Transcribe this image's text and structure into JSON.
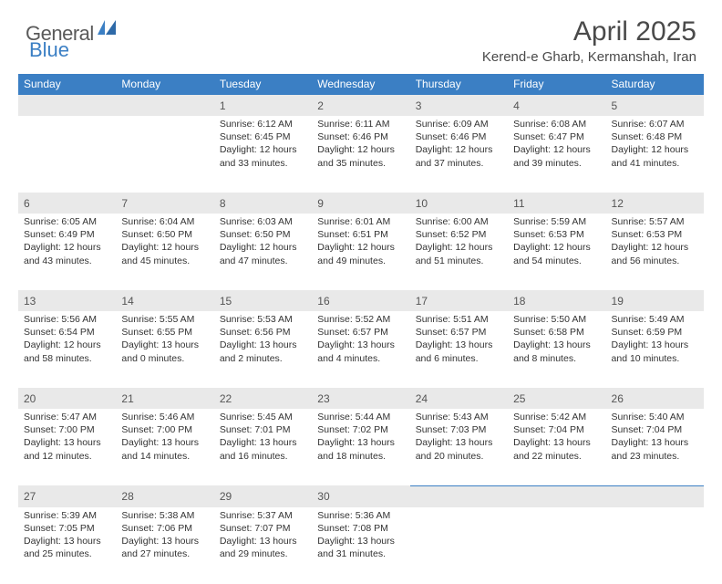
{
  "brand": {
    "part1": "General",
    "part2": "Blue"
  },
  "title": "April 2025",
  "location": "Kerend-e Gharb, Kermanshah, Iran",
  "colors": {
    "header_bg": "#3b7fc4",
    "header_text": "#ffffff",
    "daynum_bg": "#e9e9e9",
    "border": "#3b7fc4",
    "body_text": "#333333",
    "title_text": "#4a4a4a",
    "logo_gray": "#5a5a5a",
    "logo_blue": "#3b7fc4",
    "page_bg": "#ffffff"
  },
  "typography": {
    "title_fontsize": 30,
    "location_fontsize": 15,
    "header_fontsize": 12,
    "daynum_fontsize": 12,
    "cell_fontsize": 10.5,
    "logo_fontsize": 22
  },
  "weekdays": [
    "Sunday",
    "Monday",
    "Tuesday",
    "Wednesday",
    "Thursday",
    "Friday",
    "Saturday"
  ],
  "weeks": [
    [
      null,
      null,
      {
        "n": "1",
        "sr": "Sunrise: 6:12 AM",
        "ss": "Sunset: 6:45 PM",
        "d1": "Daylight: 12 hours",
        "d2": "and 33 minutes."
      },
      {
        "n": "2",
        "sr": "Sunrise: 6:11 AM",
        "ss": "Sunset: 6:46 PM",
        "d1": "Daylight: 12 hours",
        "d2": "and 35 minutes."
      },
      {
        "n": "3",
        "sr": "Sunrise: 6:09 AM",
        "ss": "Sunset: 6:46 PM",
        "d1": "Daylight: 12 hours",
        "d2": "and 37 minutes."
      },
      {
        "n": "4",
        "sr": "Sunrise: 6:08 AM",
        "ss": "Sunset: 6:47 PM",
        "d1": "Daylight: 12 hours",
        "d2": "and 39 minutes."
      },
      {
        "n": "5",
        "sr": "Sunrise: 6:07 AM",
        "ss": "Sunset: 6:48 PM",
        "d1": "Daylight: 12 hours",
        "d2": "and 41 minutes."
      }
    ],
    [
      {
        "n": "6",
        "sr": "Sunrise: 6:05 AM",
        "ss": "Sunset: 6:49 PM",
        "d1": "Daylight: 12 hours",
        "d2": "and 43 minutes."
      },
      {
        "n": "7",
        "sr": "Sunrise: 6:04 AM",
        "ss": "Sunset: 6:50 PM",
        "d1": "Daylight: 12 hours",
        "d2": "and 45 minutes."
      },
      {
        "n": "8",
        "sr": "Sunrise: 6:03 AM",
        "ss": "Sunset: 6:50 PM",
        "d1": "Daylight: 12 hours",
        "d2": "and 47 minutes."
      },
      {
        "n": "9",
        "sr": "Sunrise: 6:01 AM",
        "ss": "Sunset: 6:51 PM",
        "d1": "Daylight: 12 hours",
        "d2": "and 49 minutes."
      },
      {
        "n": "10",
        "sr": "Sunrise: 6:00 AM",
        "ss": "Sunset: 6:52 PM",
        "d1": "Daylight: 12 hours",
        "d2": "and 51 minutes."
      },
      {
        "n": "11",
        "sr": "Sunrise: 5:59 AM",
        "ss": "Sunset: 6:53 PM",
        "d1": "Daylight: 12 hours",
        "d2": "and 54 minutes."
      },
      {
        "n": "12",
        "sr": "Sunrise: 5:57 AM",
        "ss": "Sunset: 6:53 PM",
        "d1": "Daylight: 12 hours",
        "d2": "and 56 minutes."
      }
    ],
    [
      {
        "n": "13",
        "sr": "Sunrise: 5:56 AM",
        "ss": "Sunset: 6:54 PM",
        "d1": "Daylight: 12 hours",
        "d2": "and 58 minutes."
      },
      {
        "n": "14",
        "sr": "Sunrise: 5:55 AM",
        "ss": "Sunset: 6:55 PM",
        "d1": "Daylight: 13 hours",
        "d2": "and 0 minutes."
      },
      {
        "n": "15",
        "sr": "Sunrise: 5:53 AM",
        "ss": "Sunset: 6:56 PM",
        "d1": "Daylight: 13 hours",
        "d2": "and 2 minutes."
      },
      {
        "n": "16",
        "sr": "Sunrise: 5:52 AM",
        "ss": "Sunset: 6:57 PM",
        "d1": "Daylight: 13 hours",
        "d2": "and 4 minutes."
      },
      {
        "n": "17",
        "sr": "Sunrise: 5:51 AM",
        "ss": "Sunset: 6:57 PM",
        "d1": "Daylight: 13 hours",
        "d2": "and 6 minutes."
      },
      {
        "n": "18",
        "sr": "Sunrise: 5:50 AM",
        "ss": "Sunset: 6:58 PM",
        "d1": "Daylight: 13 hours",
        "d2": "and 8 minutes."
      },
      {
        "n": "19",
        "sr": "Sunrise: 5:49 AM",
        "ss": "Sunset: 6:59 PM",
        "d1": "Daylight: 13 hours",
        "d2": "and 10 minutes."
      }
    ],
    [
      {
        "n": "20",
        "sr": "Sunrise: 5:47 AM",
        "ss": "Sunset: 7:00 PM",
        "d1": "Daylight: 13 hours",
        "d2": "and 12 minutes."
      },
      {
        "n": "21",
        "sr": "Sunrise: 5:46 AM",
        "ss": "Sunset: 7:00 PM",
        "d1": "Daylight: 13 hours",
        "d2": "and 14 minutes."
      },
      {
        "n": "22",
        "sr": "Sunrise: 5:45 AM",
        "ss": "Sunset: 7:01 PM",
        "d1": "Daylight: 13 hours",
        "d2": "and 16 minutes."
      },
      {
        "n": "23",
        "sr": "Sunrise: 5:44 AM",
        "ss": "Sunset: 7:02 PM",
        "d1": "Daylight: 13 hours",
        "d2": "and 18 minutes."
      },
      {
        "n": "24",
        "sr": "Sunrise: 5:43 AM",
        "ss": "Sunset: 7:03 PM",
        "d1": "Daylight: 13 hours",
        "d2": "and 20 minutes."
      },
      {
        "n": "25",
        "sr": "Sunrise: 5:42 AM",
        "ss": "Sunset: 7:04 PM",
        "d1": "Daylight: 13 hours",
        "d2": "and 22 minutes."
      },
      {
        "n": "26",
        "sr": "Sunrise: 5:40 AM",
        "ss": "Sunset: 7:04 PM",
        "d1": "Daylight: 13 hours",
        "d2": "and 23 minutes."
      }
    ],
    [
      {
        "n": "27",
        "sr": "Sunrise: 5:39 AM",
        "ss": "Sunset: 7:05 PM",
        "d1": "Daylight: 13 hours",
        "d2": "and 25 minutes."
      },
      {
        "n": "28",
        "sr": "Sunrise: 5:38 AM",
        "ss": "Sunset: 7:06 PM",
        "d1": "Daylight: 13 hours",
        "d2": "and 27 minutes."
      },
      {
        "n": "29",
        "sr": "Sunrise: 5:37 AM",
        "ss": "Sunset: 7:07 PM",
        "d1": "Daylight: 13 hours",
        "d2": "and 29 minutes."
      },
      {
        "n": "30",
        "sr": "Sunrise: 5:36 AM",
        "ss": "Sunset: 7:08 PM",
        "d1": "Daylight: 13 hours",
        "d2": "and 31 minutes."
      },
      null,
      null,
      null
    ]
  ]
}
